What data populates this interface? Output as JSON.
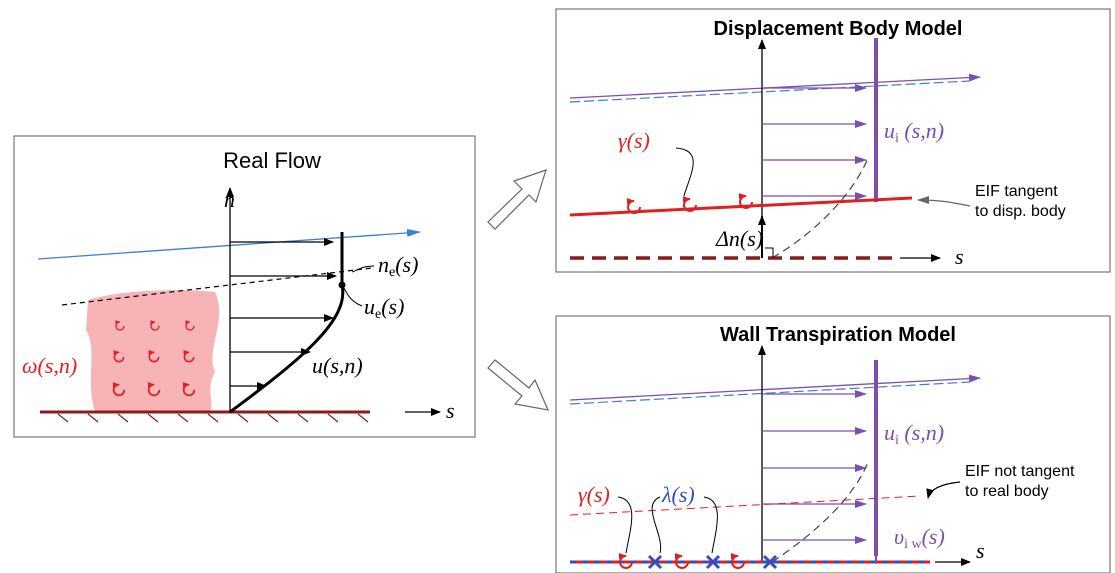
{
  "real_flow": {
    "title": "Real Flow",
    "n_axis": "n",
    "n_e": {
      "main": "n",
      "sub": "e",
      "arg": "(s)"
    },
    "u_e": {
      "main": "u",
      "sub": "e",
      "arg": "(s)"
    },
    "omega": "ω(s,n)",
    "u": "u(s,n)",
    "s_axis": "s"
  },
  "displacement_body_model": {
    "title": "Displacement Body Model",
    "gamma": "γ(s)",
    "u_i": {
      "main": "u",
      "sub": "i",
      "arg": " (s,n)"
    },
    "delta_n": "Δn(s)",
    "eif_note": [
      "EIF tangent",
      "to disp. body"
    ],
    "s_axis": "s"
  },
  "wall_transpiration_model": {
    "title": "Wall Transpiration Model",
    "gamma": "γ(s)",
    "lambda": "λ(s)",
    "u_i": {
      "main": "u",
      "sub": "i",
      "arg": " (s,n)"
    },
    "v_iw": {
      "main": "υ",
      "sub": "i w",
      "arg": "(s)"
    },
    "eif_note": [
      "EIF not tangent",
      "to real body"
    ],
    "s_axis": "s"
  }
}
